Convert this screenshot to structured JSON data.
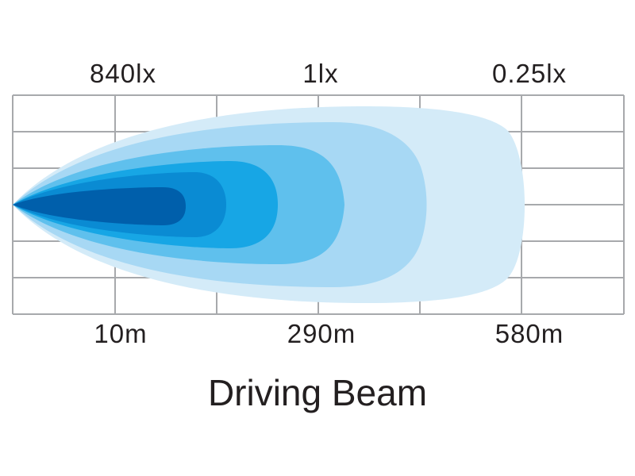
{
  "top_labels": [
    "840lx",
    "1lx",
    "0.25lx"
  ],
  "bottom_labels": [
    "10m",
    "290m",
    "580m"
  ],
  "title": "Driving Beam",
  "colors": {
    "grid": "#a7a9ac",
    "beam_levels": [
      "#d4ebf8",
      "#a7d8f4",
      "#5fc0ed",
      "#17a6e5",
      "#0a8bd3",
      "#005fab"
    ]
  }
}
